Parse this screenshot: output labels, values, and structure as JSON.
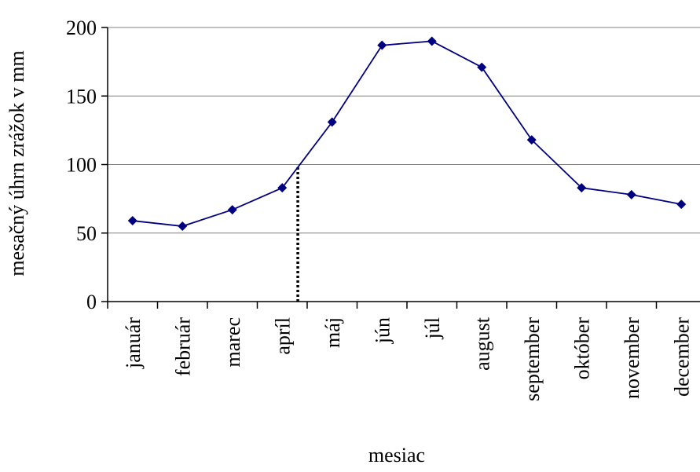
{
  "chart_data": {
    "type": "line",
    "title": "",
    "xlabel": "mesiac",
    "ylabel": "mesačný úhrn zrážok v mm",
    "categories": [
      "január",
      "február",
      "marec",
      "apríl",
      "máj",
      "jún",
      "júl",
      "august",
      "september",
      "október",
      "november",
      "december"
    ],
    "series": [
      {
        "values": [
          59,
          55,
          67,
          83,
          131,
          187,
          190,
          171,
          118,
          83,
          78,
          71
        ]
      }
    ],
    "ylim": [
      0,
      200
    ],
    "yticks": [
      "0",
      "50",
      "100",
      "150",
      "200"
    ],
    "grid": true,
    "legend": "none",
    "marker": "diamond",
    "line_color": "#000080",
    "marker_color": "#000080",
    "annotation": {
      "type": "dotted-vertical-line",
      "x_between": [
        "apríl",
        "máj"
      ],
      "y_top": 98
    }
  }
}
